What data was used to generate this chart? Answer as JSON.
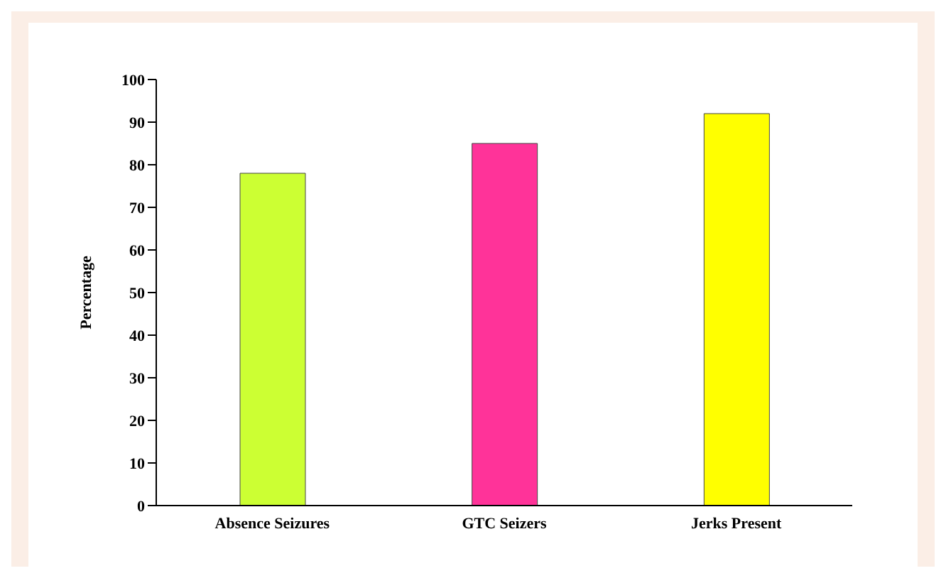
{
  "chart_data": {
    "type": "bar",
    "ylabel": "Percentage",
    "categories": [
      "Absence Seizures",
      "GTC Seizers",
      "Jerks Present"
    ],
    "values": [
      78,
      85,
      92
    ],
    "colors": [
      "#ccff33",
      "#ff3399",
      "#ffff00"
    ],
    "ylim": [
      0,
      100
    ],
    "yticks": [
      0,
      10,
      20,
      30,
      40,
      50,
      60,
      70,
      80,
      90,
      100
    ],
    "grid": false
  }
}
